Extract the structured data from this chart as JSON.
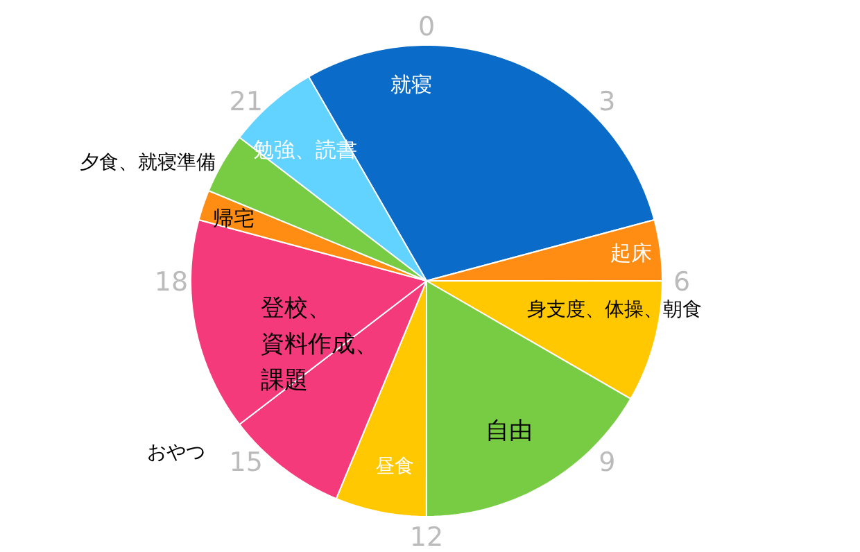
{
  "chart_data": {
    "type": "pie",
    "categories": [
      "就寝",
      "起床",
      "身支度、体操、朝食",
      "自由",
      "昼食",
      "おやつ",
      "登校、資料作成、課題",
      "帰宅",
      "夕食、就寝準備",
      "勉強、読書"
    ],
    "values": [
      29.17,
      4.17,
      8.33,
      16.67,
      6.25,
      8.33,
      14.58,
      2.08,
      4.17,
      6.25
    ],
    "colors": [
      "#0a6cc8",
      "#ff8c13",
      "#ffc800",
      "#77cc44",
      "#ffc800",
      "#f43a7a",
      "#f43a7a",
      "#ff8c13",
      "#77cc44",
      "#62d2ff"
    ],
    "annotations": [
      "0",
      "3",
      "6",
      "9",
      "12",
      "15",
      "18",
      "21"
    ]
  }
}
